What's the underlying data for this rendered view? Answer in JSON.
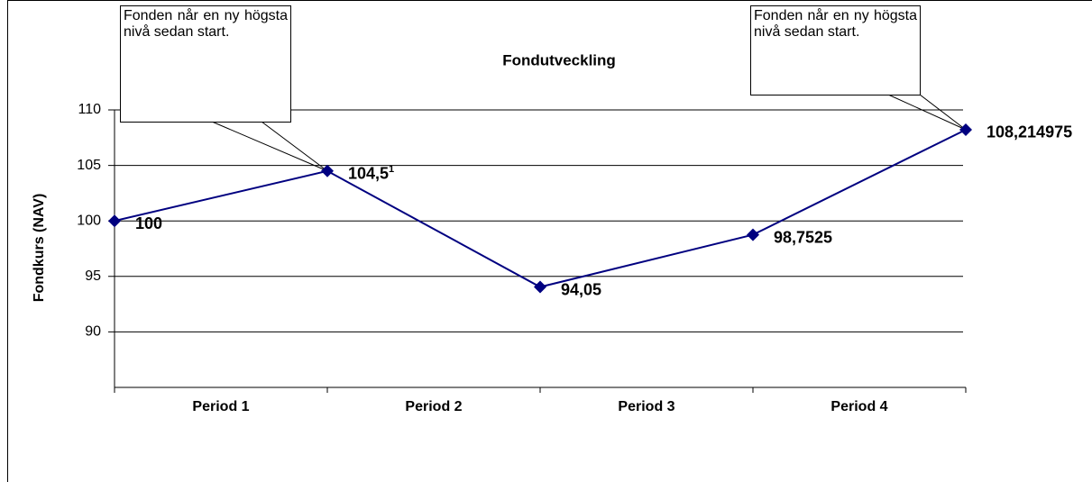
{
  "chart_data": {
    "type": "line",
    "title": "Fondutveckling",
    "y_label": "Fondkurs (NAV)",
    "categories": [
      "Period 1",
      "Period 2",
      "Period 3",
      "Period 4",
      null
    ],
    "series": [
      {
        "name": "Fondkurs",
        "color": "#000080",
        "values": [
          100,
          104.5,
          94.05,
          98.7525,
          108.214975
        ],
        "value_labels": [
          "100",
          "104,5",
          "94,05",
          "98,7525",
          "108,214975"
        ]
      }
    ],
    "footnote_mark": "1",
    "annotations": [
      "Fonden når en ny högsta nivå sedan start.",
      "Fonden når en ny högsta nivå sedan start."
    ],
    "ylim": [
      85,
      110
    ],
    "yticks": [
      90,
      95,
      100,
      105,
      110
    ],
    "grid": true
  }
}
